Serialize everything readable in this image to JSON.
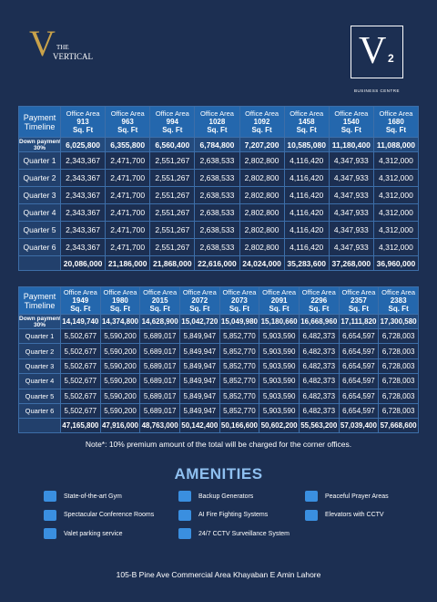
{
  "brand": {
    "left": {
      "initial": "V",
      "line1": "THE",
      "line2": "VERTICAL"
    },
    "right": {
      "initial": "V",
      "superscript": "2",
      "subtitle": "BUSINESS CENTRE"
    }
  },
  "tables": [
    {
      "corner": "Payment Timeline",
      "columns": [
        {
          "label": "Office Area",
          "size": "913",
          "unit": "Sq. Ft"
        },
        {
          "label": "Office Area",
          "size": "963",
          "unit": "Sq. Ft"
        },
        {
          "label": "Office Area",
          "size": "994",
          "unit": "Sq. Ft"
        },
        {
          "label": "Office Area",
          "size": "1028",
          "unit": "Sq. Ft"
        },
        {
          "label": "Office Area",
          "size": "1092",
          "unit": "Sq. Ft"
        },
        {
          "label": "Office Area",
          "size": "1458",
          "unit": "Sq. Ft"
        },
        {
          "label": "Office Area",
          "size": "1540",
          "unit": "Sq. Ft"
        },
        {
          "label": "Office Area",
          "size": "1680",
          "unit": "Sq. Ft"
        }
      ],
      "rows": [
        {
          "label": [
            "Down payment",
            "30%"
          ],
          "cells": [
            "6,025,800",
            "6,355,800",
            "6,560,400",
            "6,784,800",
            "7,207,200",
            "10,585,080",
            "11,180,400",
            "11,088,000"
          ]
        },
        {
          "label": [
            "Quarter 1"
          ],
          "cells": [
            "2,343,367",
            "2,471,700",
            "2,551,267",
            "2,638,533",
            "2,802,800",
            "4,116,420",
            "4,347,933",
            "4,312,000"
          ]
        },
        {
          "label": [
            "Quarter 2"
          ],
          "cells": [
            "2,343,367",
            "2,471,700",
            "2,551,267",
            "2,638,533",
            "2,802,800",
            "4,116,420",
            "4,347,933",
            "4,312,000"
          ]
        },
        {
          "label": [
            "Quarter 3"
          ],
          "cells": [
            "2,343,367",
            "2,471,700",
            "2,551,267",
            "2,638,533",
            "2,802,800",
            "4,116,420",
            "4,347,933",
            "4,312,000"
          ]
        },
        {
          "label": [
            "Quarter 4"
          ],
          "cells": [
            "2,343,367",
            "2,471,700",
            "2,551,267",
            "2,638,533",
            "2,802,800",
            "4,116,420",
            "4,347,933",
            "4,312,000"
          ]
        },
        {
          "label": [
            "Quarter 5"
          ],
          "cells": [
            "2,343,367",
            "2,471,700",
            "2,551,267",
            "2,638,533",
            "2,802,800",
            "4,116,420",
            "4,347,933",
            "4,312,000"
          ]
        },
        {
          "label": [
            "Quarter 6"
          ],
          "cells": [
            "2,343,367",
            "2,471,700",
            "2,551,267",
            "2,638,533",
            "2,802,800",
            "4,116,420",
            "4,347,933",
            "4,312,000"
          ]
        }
      ],
      "totals": [
        "20,086,000",
        "21,186,000",
        "21,868,000",
        "22,616,000",
        "24,024,000",
        "35,283,600",
        "37,268,000",
        "36,960,000"
      ]
    },
    {
      "corner": "Payment Timeline",
      "columns": [
        {
          "label": "Office Area",
          "size": "1949",
          "unit": "Sq. Ft"
        },
        {
          "label": "Office Area",
          "size": "1980",
          "unit": "Sq. Ft"
        },
        {
          "label": "Office Area",
          "size": "2015",
          "unit": "Sq. Ft"
        },
        {
          "label": "Office Area",
          "size": "2072",
          "unit": "Sq. Ft"
        },
        {
          "label": "Office Area",
          "size": "2073",
          "unit": "Sq. Ft"
        },
        {
          "label": "Office Area",
          "size": "2091",
          "unit": "Sq. Ft"
        },
        {
          "label": "Office Area",
          "size": "2296",
          "unit": "Sq. Ft"
        },
        {
          "label": "Office Area",
          "size": "2357",
          "unit": "Sq. Ft"
        },
        {
          "label": "Office Area",
          "size": "2383",
          "unit": "Sq. Ft"
        }
      ],
      "rows": [
        {
          "label": [
            "Down payment",
            "30%"
          ],
          "cells": [
            "14,149,740",
            "14,374,800",
            "14,628,900",
            "15,042,720",
            "15,049,980",
            "15,180,660",
            "16,668,960",
            "17,111,820",
            "17,300,580"
          ]
        },
        {
          "label": [
            "Quarter 1"
          ],
          "cells": [
            "5,502,677",
            "5,590,200",
            "5,689,017",
            "5,849,947",
            "5,852,770",
            "5,903,590",
            "6,482,373",
            "6,654,597",
            "6,728,003"
          ]
        },
        {
          "label": [
            "Quarter 2"
          ],
          "cells": [
            "5,502,677",
            "5,590,200",
            "5,689,017",
            "5,849,947",
            "5,852,770",
            "5,903,590",
            "6,482,373",
            "6,654,597",
            "6,728,003"
          ]
        },
        {
          "label": [
            "Quarter 3"
          ],
          "cells": [
            "5,502,677",
            "5,590,200",
            "5,689,017",
            "5,849,947",
            "5,852,770",
            "5,903,590",
            "6,482,373",
            "6,654,597",
            "6,728,003"
          ]
        },
        {
          "label": [
            "Quarter 4"
          ],
          "cells": [
            "5,502,677",
            "5,590,200",
            "5,689,017",
            "5,849,947",
            "5,852,770",
            "5,903,590",
            "6,482,373",
            "6,654,597",
            "6,728,003"
          ]
        },
        {
          "label": [
            "Quarter 5"
          ],
          "cells": [
            "5,502,677",
            "5,590,200",
            "5,689,017",
            "5,849,947",
            "5,852,770",
            "5,903,590",
            "6,482,373",
            "6,654,597",
            "6,728,003"
          ]
        },
        {
          "label": [
            "Quarter 6"
          ],
          "cells": [
            "5,502,677",
            "5,590,200",
            "5,689,017",
            "5,849,947",
            "5,852,770",
            "5,903,590",
            "6,482,373",
            "6,654,597",
            "6,728,003"
          ]
        }
      ],
      "totals": [
        "47,165,800",
        "47,916,000",
        "48,763,000",
        "50,142,400",
        "50,166,600",
        "50,602,200",
        "55,563,200",
        "57,039,400",
        "57,668,600"
      ]
    }
  ],
  "note": "Note*: 10% premium amount of the total will be charged for the corner offices.",
  "amenities": {
    "title": "AMENITIES",
    "columns": [
      [
        "State-of-the-art Gym",
        "Spectacular Conference Rooms",
        "Valet parking service"
      ],
      [
        "Backup Generators",
        "AI Fire Fighting Systems",
        "24/7 CCTV Surveillance System"
      ],
      [
        "Peaceful Prayer Areas",
        "Elevators with CCTV"
      ]
    ]
  },
  "address": "105-B Pine Ave Commercial Area Khayaban E Amin Lahore"
}
